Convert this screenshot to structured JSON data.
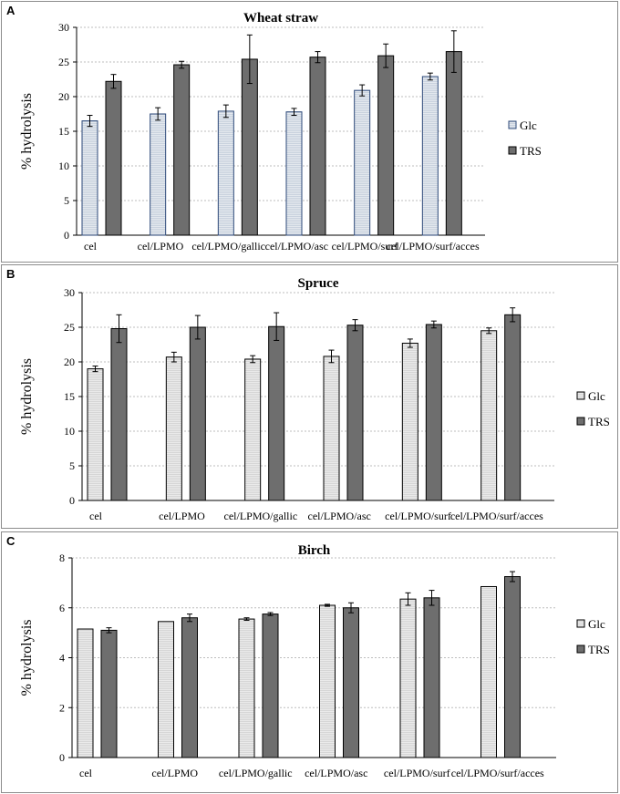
{
  "chart_data": [
    {
      "type": "bar",
      "panel_label": "A",
      "title": "Wheat straw",
      "ylabel": "% hydrolysis",
      "xlabel": "",
      "ylim": [
        0,
        30
      ],
      "yticks": [
        "0",
        "5",
        "10",
        "15",
        "20",
        "25",
        "30"
      ],
      "grid": true,
      "legend_position": "right",
      "categories": [
        "cel",
        "cel/LPMO",
        "cel/LPMO/gallic",
        "cel/LPMO/asc",
        "cel/LPMO/surf",
        "cel/LPMO/surf/acces"
      ],
      "series": [
        {
          "name": "Glc",
          "color": "#c9d2de",
          "values": [
            16.5,
            17.5,
            17.9,
            17.8,
            20.9,
            22.9
          ],
          "errors": [
            0.8,
            0.9,
            0.9,
            0.5,
            0.8,
            0.5
          ]
        },
        {
          "name": "TRS",
          "color": "#6e6e6e",
          "values": [
            22.2,
            24.6,
            25.4,
            25.7,
            25.9,
            26.5
          ],
          "errors": [
            1.0,
            0.5,
            3.5,
            0.8,
            1.7,
            3.0
          ]
        }
      ]
    },
    {
      "type": "bar",
      "panel_label": "B",
      "title": "Spruce",
      "ylabel": "% hydrolysis",
      "xlabel": "",
      "ylim": [
        0,
        30
      ],
      "yticks": [
        "0",
        "5",
        "10",
        "15",
        "20",
        "25",
        "30"
      ],
      "grid": true,
      "legend_position": "right",
      "categories": [
        "cel",
        "cel/LPMO",
        "cel/LPMO/gallic",
        "cel/LPMO/asc",
        "cel/LPMO/surf",
        "cel/LPMO/surf/acces"
      ],
      "series": [
        {
          "name": "Glc",
          "color": "#d6d6d6",
          "values": [
            19.0,
            20.7,
            20.4,
            20.8,
            22.7,
            24.5
          ],
          "errors": [
            0.4,
            0.7,
            0.5,
            0.9,
            0.6,
            0.4
          ]
        },
        {
          "name": "TRS",
          "color": "#6e6e6e",
          "values": [
            24.8,
            25.0,
            25.1,
            25.3,
            25.4,
            26.8
          ],
          "errors": [
            2.0,
            1.7,
            2.0,
            0.8,
            0.5,
            1.0
          ]
        }
      ]
    },
    {
      "type": "bar",
      "panel_label": "C",
      "title": "Birch",
      "ylabel": "% hydrolysis",
      "xlabel": "",
      "ylim": [
        0,
        8
      ],
      "yticks": [
        "0",
        "2",
        "4",
        "6",
        "8"
      ],
      "grid": true,
      "legend_position": "right",
      "categories": [
        "cel",
        "cel/LPMO",
        "cel/LPMO/gallic",
        "cel/LPMO/asc",
        "cel/LPMO/surf",
        "cel/LPMO/surf/acces"
      ],
      "series": [
        {
          "name": "Glc",
          "color": "#d6d6d6",
          "values": [
            5.15,
            5.45,
            5.55,
            6.1,
            6.35,
            6.85
          ],
          "errors": [
            0.0,
            0.0,
            0.05,
            0.04,
            0.25,
            0.0
          ]
        },
        {
          "name": "TRS",
          "color": "#6e6e6e",
          "values": [
            5.1,
            5.6,
            5.75,
            6.0,
            6.4,
            7.25
          ],
          "errors": [
            0.1,
            0.15,
            0.06,
            0.2,
            0.3,
            0.2
          ]
        }
      ]
    }
  ]
}
